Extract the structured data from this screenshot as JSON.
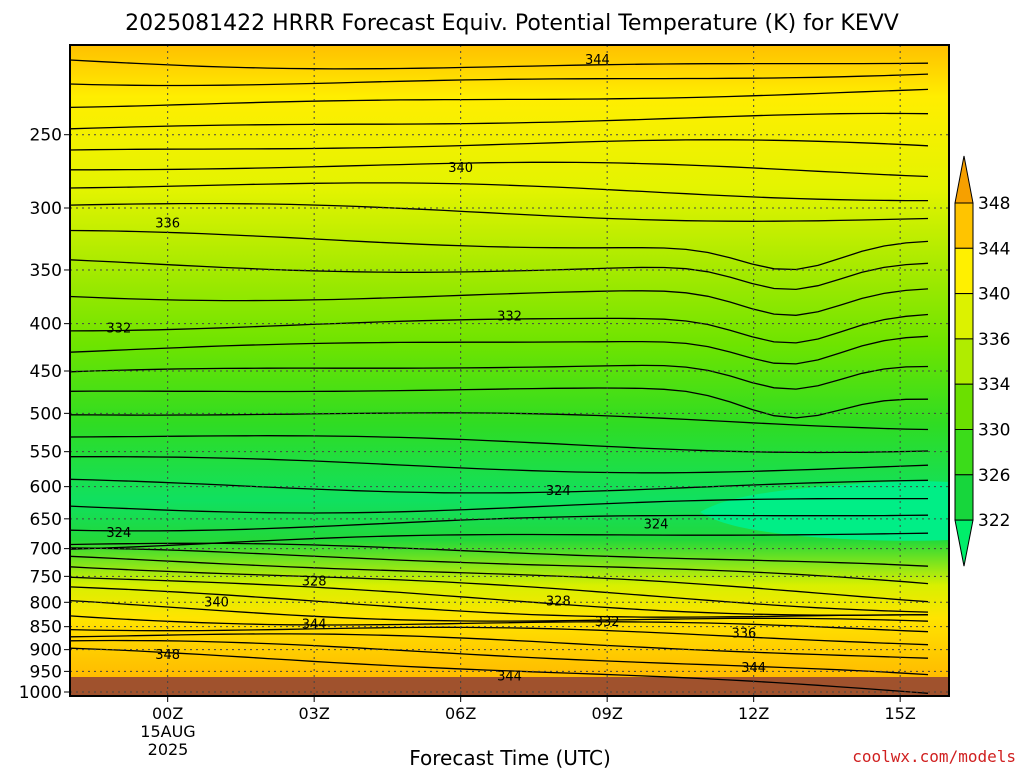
{
  "chart_data": {
    "type": "heatmap",
    "title": "2025081422 HRRR Forecast Equiv. Potential Temperature (K) for KEVV",
    "xlabel": "Forecast Time (UTC)",
    "ylabel": "",
    "watermark": "coolwx.com/models",
    "x_ticks": [
      "00Z",
      "03Z",
      "06Z",
      "09Z",
      "12Z",
      "15Z"
    ],
    "x_ticks_hours": [
      0,
      3,
      6,
      9,
      12,
      15
    ],
    "x_date_label": [
      "15AUG",
      "2025"
    ],
    "xlim_hours": [
      -2,
      16
    ],
    "y_ticks": [
      250,
      300,
      350,
      400,
      450,
      500,
      550,
      600,
      650,
      700,
      750,
      800,
      850,
      900,
      950,
      1000
    ],
    "ylim_hpa": [
      200,
      1010
    ],
    "y_scale": "log",
    "colorbar_levels": [
      322,
      326,
      330,
      334,
      336,
      340,
      344,
      348
    ],
    "colorbar_colors": [
      "#00ee6a",
      "#17d63c",
      "#3bdc1a",
      "#6be000",
      "#b0ec00",
      "#dcf200",
      "#fff000",
      "#ffc400",
      "#f6a000"
    ],
    "contour_labels": [
      {
        "text": "344",
        "hour": 8.8,
        "p": 207
      },
      {
        "text": "340",
        "hour": 6.0,
        "p": 271
      },
      {
        "text": "336",
        "hour": 0.0,
        "p": 311
      },
      {
        "text": "332",
        "hour": -1.0,
        "p": 404
      },
      {
        "text": "332",
        "hour": 7.0,
        "p": 392
      },
      {
        "text": "324",
        "hour": 8.0,
        "p": 605
      },
      {
        "text": "324",
        "hour": 10.0,
        "p": 658
      },
      {
        "text": "324",
        "hour": -1.0,
        "p": 672
      },
      {
        "text": "328",
        "hour": 3.0,
        "p": 758
      },
      {
        "text": "328",
        "hour": 8.0,
        "p": 796
      },
      {
        "text": "340",
        "hour": 1.0,
        "p": 798
      },
      {
        "text": "332",
        "hour": 9.0,
        "p": 838
      },
      {
        "text": "344",
        "hour": 3.0,
        "p": 843
      },
      {
        "text": "336",
        "hour": 11.8,
        "p": 862
      },
      {
        "text": "348",
        "hour": 0.0,
        "p": 910
      },
      {
        "text": "344",
        "hour": 12.0,
        "p": 940
      },
      {
        "text": "344",
        "hour": 7.0,
        "p": 960
      }
    ]
  }
}
